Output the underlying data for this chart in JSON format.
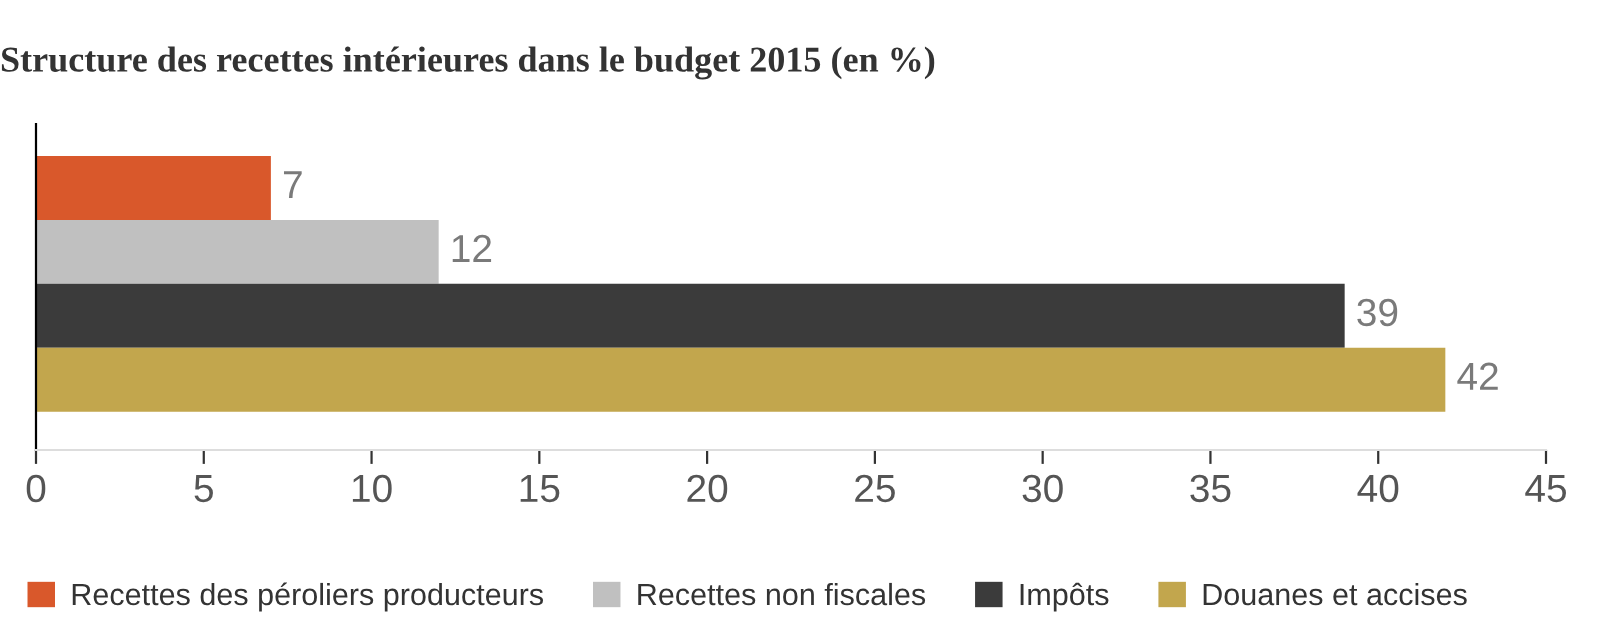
{
  "chart_data": {
    "type": "bar",
    "orientation": "horizontal",
    "title": "Structure des recettes intérieures dans le budget 2015 (en %)",
    "categories": [
      null,
      null,
      null,
      null
    ],
    "series": [
      {
        "name": "Recettes des péroliers producteurs",
        "color": "#d9582b",
        "values": [
          7,
          null,
          null,
          null
        ]
      },
      {
        "name": "Recettes non fiscales",
        "color": "#c0c0c0",
        "values": [
          null,
          12,
          null,
          null
        ]
      },
      {
        "name": "Impôts",
        "color": "#3b3b3b",
        "values": [
          null,
          null,
          39,
          null
        ]
      },
      {
        "name": "Douanes et accises",
        "color": "#c2a64d",
        "values": [
          null,
          null,
          null,
          42
        ]
      }
    ],
    "xlim": [
      0,
      45
    ],
    "xticks": [
      0,
      5,
      10,
      15,
      20,
      25,
      30,
      35,
      40,
      45
    ],
    "grid": false,
    "legend": "bottom",
    "data_labels": true
  }
}
